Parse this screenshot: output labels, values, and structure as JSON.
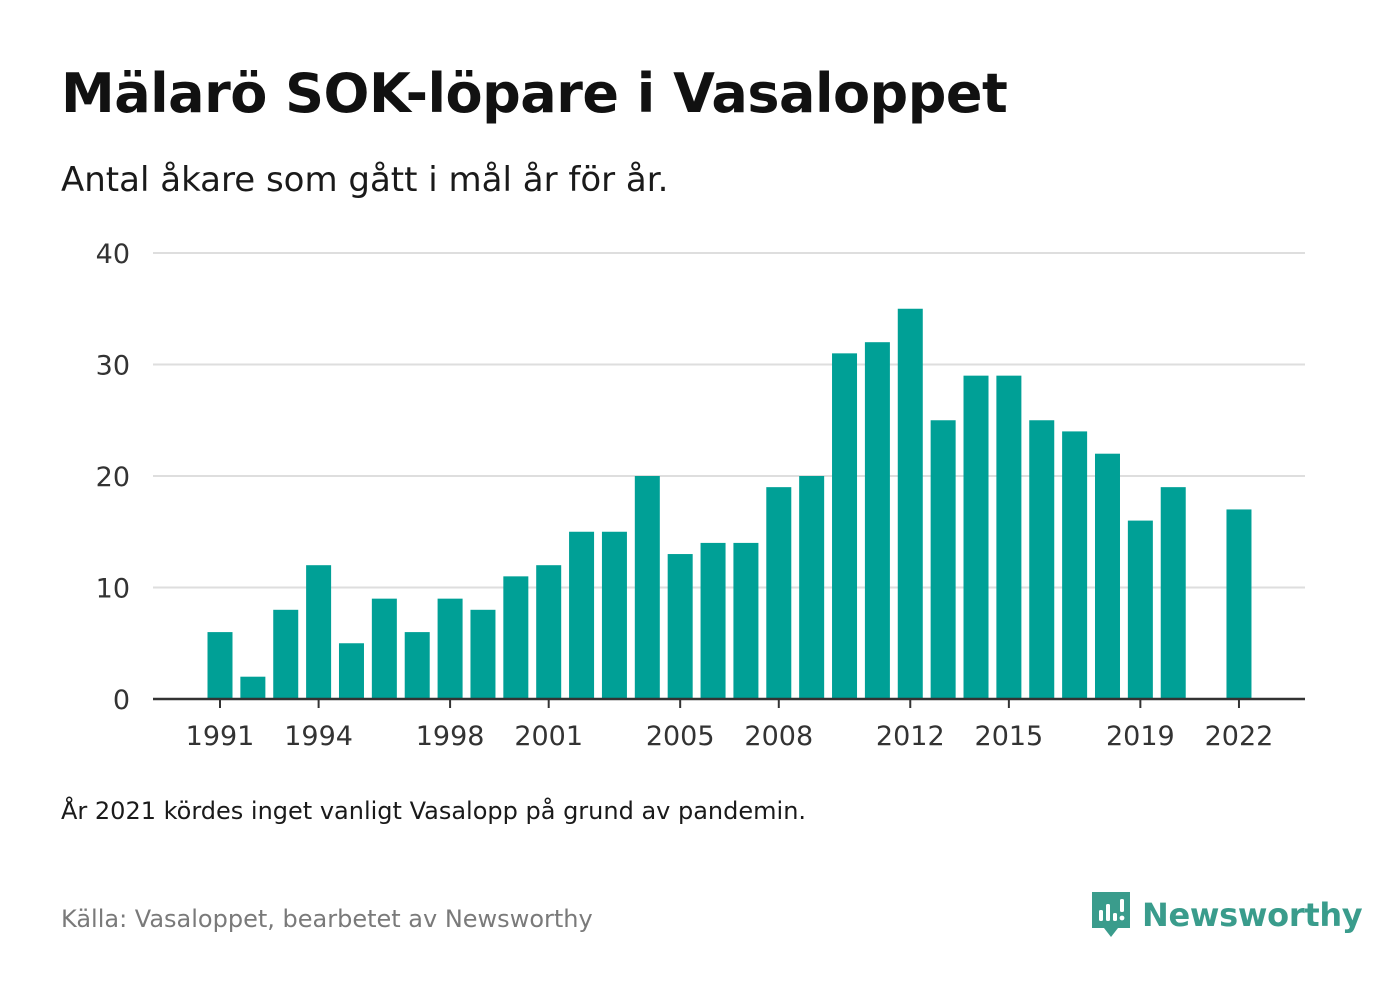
{
  "title": "Mälarö SOK-löpare i Vasaloppet",
  "subtitle": "Antal åkare som gått i mål år för år.",
  "note": "År 2021 kördes inget vanligt Vasalopp på grund av pandemin.",
  "source": "Källa: Vasaloppet, bearbetet av Newsworthy",
  "brand": {
    "name": "Newsworthy",
    "icon": "newsworthy-logo-icon",
    "color": "#3a9c8c"
  },
  "chart_data": {
    "type": "bar",
    "bar_color": "#00a096",
    "categories": [
      1991,
      1992,
      1993,
      1994,
      1995,
      1996,
      1997,
      1998,
      1999,
      2000,
      2001,
      2002,
      2003,
      2004,
      2005,
      2006,
      2007,
      2008,
      2009,
      2010,
      2011,
      2012,
      2013,
      2014,
      2015,
      2016,
      2017,
      2018,
      2019,
      2020,
      2021,
      2022
    ],
    "values": [
      6,
      2,
      8,
      12,
      5,
      9,
      6,
      9,
      8,
      11,
      12,
      15,
      15,
      20,
      13,
      14,
      14,
      19,
      20,
      31,
      32,
      35,
      25,
      29,
      29,
      25,
      24,
      22,
      16,
      19,
      null,
      17
    ],
    "x_tick_labels": [
      1991,
      1994,
      1998,
      2001,
      2005,
      2008,
      2012,
      2015,
      2019,
      2022
    ],
    "y_ticks": [
      0,
      10,
      20,
      30,
      40
    ],
    "ylim": [
      0,
      40
    ],
    "grid": true,
    "xlabel": "",
    "ylabel": ""
  }
}
